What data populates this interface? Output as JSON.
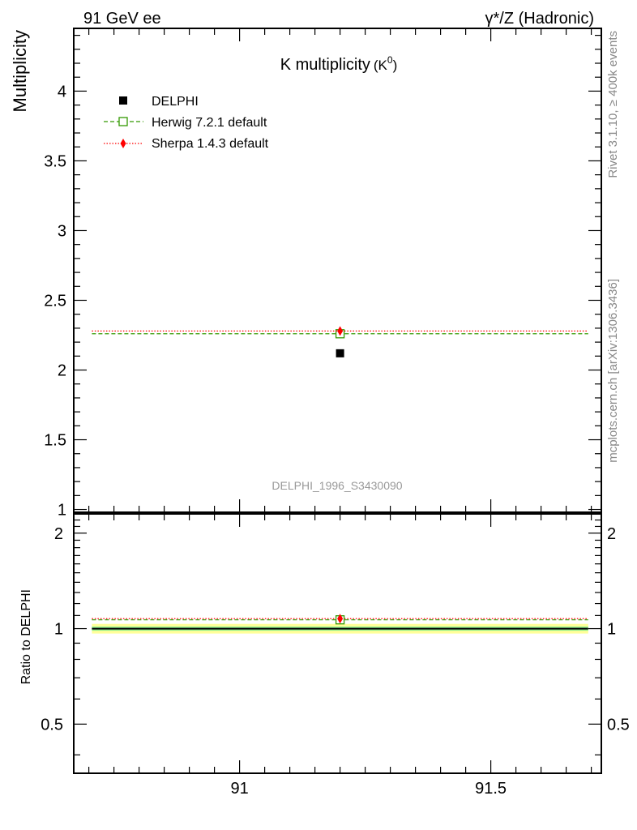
{
  "header": {
    "left": "91 GeV ee",
    "right": "γ*/Z (Hadronic)"
  },
  "side": {
    "rivet": "Rivet 3.1.10, ≥ 400k events",
    "mcplots": "mcplots.cern.ch [arXiv:1306.3436]"
  },
  "main": {
    "title_main": "K multiplicity",
    "title_sub": "(K",
    "title_sup": "0",
    "title_close": ")",
    "ylabel": "Multiplicity",
    "watermark": "DELPHI_1996_S3430090"
  },
  "ratio": {
    "ylabel": "Ratio to DELPHI"
  },
  "legend": [
    {
      "label": "DELPHI"
    },
    {
      "label": "Herwig 7.2.1 default"
    },
    {
      "label": "Sherpa 1.4.3 default"
    }
  ],
  "colors": {
    "data": "#000000",
    "herwig": "#339900",
    "sherpa": "#ff0000",
    "band_inner": "#90ee90",
    "band_outer": "#ffff99"
  },
  "chart_data": [
    {
      "type": "line",
      "title": "K multiplicity (K0)",
      "xlabel": "",
      "ylabel": "Multiplicity",
      "xlim": [
        90.67,
        91.72
      ],
      "ylim": [
        0.98,
        4.45
      ],
      "x_ticks": [
        "91",
        "91.5"
      ],
      "y_ticks": [
        "1",
        "1.5",
        "2",
        "2.5",
        "3",
        "3.5",
        "4"
      ],
      "series": [
        {
          "name": "DELPHI",
          "style": "marker-square",
          "x": [
            91.2
          ],
          "y": [
            2.12
          ]
        },
        {
          "name": "Herwig 7.2.1 default",
          "style": "dashed-open-square",
          "x_range": [
            90.69,
            91.71
          ],
          "y": [
            2.26
          ]
        },
        {
          "name": "Sherpa 1.4.3 default",
          "style": "dotted-diamond",
          "x_range": [
            90.69,
            91.71
          ],
          "y": [
            2.28
          ]
        }
      ]
    },
    {
      "type": "line",
      "title": "",
      "xlabel": "",
      "ylabel": "Ratio to DELPHI",
      "xlim": [
        90.67,
        91.72
      ],
      "ylim": [
        0.35,
        2.3
      ],
      "x_ticks": [
        "91",
        "91.5"
      ],
      "y_ticks": [
        "0.5",
        "1",
        "2"
      ],
      "reference_band": {
        "center": 1.0,
        "inner": [
          0.985,
          1.015
        ],
        "outer": [
          0.965,
          1.035
        ]
      },
      "series": [
        {
          "name": "DELPHI",
          "y": [
            1.0
          ]
        },
        {
          "name": "Herwig 7.2.1 default",
          "y": [
            1.066
          ]
        },
        {
          "name": "Sherpa 1.4.3 default",
          "y": [
            1.075
          ]
        }
      ]
    }
  ]
}
